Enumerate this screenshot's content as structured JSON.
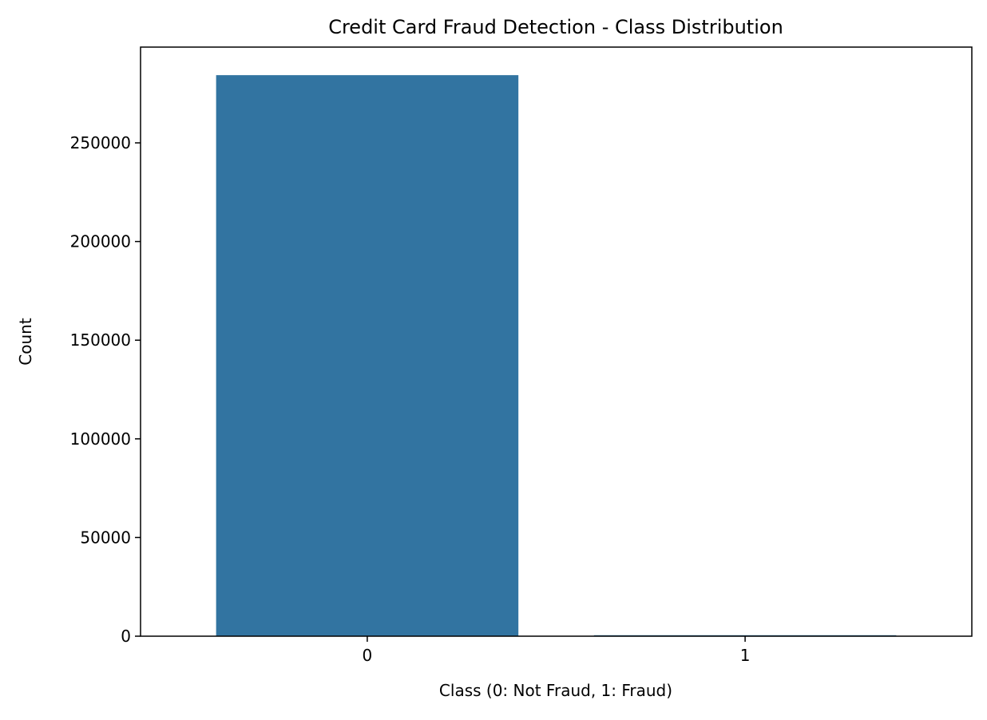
{
  "chart_data": {
    "type": "bar",
    "title": "Credit Card Fraud Detection - Class Distribution",
    "xlabel": "Class (0: Not Fraud, 1: Fraud)",
    "ylabel": "Count",
    "categories": [
      "0",
      "1"
    ],
    "values": [
      284315,
      492
    ],
    "ylim": [
      0,
      298531
    ],
    "yticks": [
      0,
      50000,
      100000,
      150000,
      200000,
      250000
    ],
    "grid": false,
    "legend": "none",
    "colors": {
      "bar": "#3274a1",
      "axis": "#000000",
      "background": "#ffffff"
    }
  }
}
